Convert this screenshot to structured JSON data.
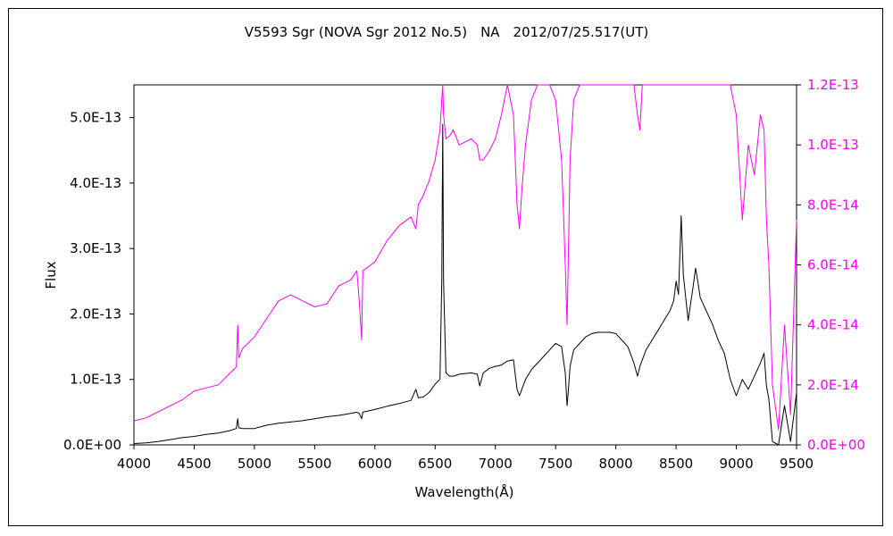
{
  "chart_data": {
    "type": "line",
    "title": "V5593 Sgr (NOVA Sgr 2012 No.5)　NA　2012/07/25.517(UT)",
    "xlabel": "Wavelength(Å)",
    "ylabel": "Flux",
    "xlim": [
      4000,
      9500
    ],
    "ylim_left": [
      0,
      5.5e-13
    ],
    "ylim_right": [
      0,
      1.2e-13
    ],
    "x_ticks": [
      4000,
      4500,
      5000,
      5500,
      6000,
      6500,
      7000,
      7500,
      8000,
      8500,
      9000,
      9500
    ],
    "x_tick_labels": [
      "4000",
      "4500",
      "5000",
      "5500",
      "6000",
      "6500",
      "7000",
      "7500",
      "8000",
      "8500",
      "9000",
      "9500"
    ],
    "y_left_ticks": [
      0,
      1e-13,
      2e-13,
      3e-13,
      4e-13,
      5e-13
    ],
    "y_left_tick_labels": [
      "0.0E+00",
      "1.0E-13",
      "2.0E-13",
      "3.0E-13",
      "4.0E-13",
      "5.0E-13"
    ],
    "y_right_ticks": [
      0,
      2e-14,
      4e-14,
      6e-14,
      8e-14,
      1e-13,
      1.2e-13
    ],
    "y_right_tick_labels": [
      "0.0E+00",
      "2.0E-14",
      "4.0E-14",
      "6.0E-14",
      "8.0E-14",
      "1.0E-13",
      "1.2E-13"
    ],
    "grid": false,
    "colors": {
      "left_axis": "#000000",
      "right_axis": "#ff00ff"
    },
    "series": [
      {
        "axis": "left",
        "color": "#000000",
        "x": [
          4000,
          4100,
          4200,
          4300,
          4400,
          4500,
          4600,
          4700,
          4800,
          4850,
          4861,
          4870,
          4900,
          5000,
          5100,
          5200,
          5300,
          5400,
          5500,
          5600,
          5700,
          5800,
          5850,
          5870,
          5890,
          5900,
          6000,
          6100,
          6200,
          6300,
          6340,
          6360,
          6400,
          6450,
          6500,
          6540,
          6555,
          6563,
          6570,
          6590,
          6620,
          6650,
          6700,
          6800,
          6850,
          6870,
          6900,
          6950,
          7000,
          7050,
          7100,
          7150,
          7180,
          7200,
          7220,
          7250,
          7300,
          7350,
          7400,
          7450,
          7500,
          7550,
          7580,
          7595,
          7605,
          7620,
          7650,
          7700,
          7750,
          7800,
          7850,
          7900,
          7950,
          8000,
          8050,
          8100,
          8150,
          8180,
          8200,
          8220,
          8250,
          8300,
          8350,
          8400,
          8450,
          8480,
          8500,
          8520,
          8542,
          8560,
          8600,
          8640,
          8662,
          8680,
          8700,
          8750,
          8800,
          8850,
          8900,
          8950,
          9000,
          9050,
          9100,
          9150,
          9200,
          9230,
          9250,
          9270,
          9300,
          9350,
          9400,
          9450,
          9500
        ],
        "y": [
          2e-15,
          3e-15,
          5e-15,
          8e-15,
          1.1e-14,
          1.3e-14,
          1.6e-14,
          1.8e-14,
          2.2e-14,
          2.5e-14,
          4e-14,
          2.6e-14,
          2.5e-14,
          2.5e-14,
          3e-14,
          3.3e-14,
          3.5e-14,
          3.7e-14,
          4e-14,
          4.3e-14,
          4.5e-14,
          4.8e-14,
          5e-14,
          4.8e-14,
          4e-14,
          5e-14,
          5.4e-14,
          5.9e-14,
          6.3e-14,
          6.8e-14,
          8.5e-14,
          7.2e-14,
          7.3e-14,
          8e-14,
          9.3e-14,
          1e-13,
          2.5e-13,
          4.9e-13,
          2.5e-13,
          1.1e-13,
          1.05e-13,
          1.05e-13,
          1.08e-13,
          1.1e-13,
          1.08e-13,
          9e-14,
          1.1e-13,
          1.17e-13,
          1.2e-13,
          1.22e-13,
          1.28e-13,
          1.3e-13,
          8.5e-14,
          7.5e-14,
          8.5e-14,
          1e-13,
          1.15e-13,
          1.25e-13,
          1.35e-13,
          1.45e-13,
          1.55e-13,
          1.5e-13,
          1.1e-13,
          6e-14,
          8e-14,
          1.2e-13,
          1.45e-13,
          1.55e-13,
          1.65e-13,
          1.7e-13,
          1.72e-13,
          1.72e-13,
          1.72e-13,
          1.7e-13,
          1.6e-13,
          1.5e-13,
          1.25e-13,
          1.05e-13,
          1.2e-13,
          1.3e-13,
          1.45e-13,
          1.6e-13,
          1.75e-13,
          1.9e-13,
          2.05e-13,
          2.2e-13,
          2.5e-13,
          2.3e-13,
          3.5e-13,
          2.6e-13,
          1.9e-13,
          2.4e-13,
          2.7e-13,
          2.5e-13,
          2.25e-13,
          2.05e-13,
          1.85e-13,
          1.6e-13,
          1.4e-13,
          1e-13,
          7.5e-14,
          1e-13,
          8.5e-14,
          1.05e-13,
          1.25e-13,
          1.4e-13,
          9e-14,
          7e-14,
          5e-15,
          0.0,
          6e-14,
          5e-15,
          8e-14
        ]
      },
      {
        "axis": "right",
        "color": "#ff00ff",
        "x": [
          4000,
          4100,
          4200,
          4300,
          4400,
          4500,
          4600,
          4700,
          4800,
          4850,
          4861,
          4870,
          4900,
          5000,
          5100,
          5200,
          5300,
          5400,
          5500,
          5600,
          5700,
          5800,
          5850,
          5870,
          5890,
          5900,
          6000,
          6100,
          6200,
          6300,
          6340,
          6360,
          6400,
          6450,
          6500,
          6540,
          6555,
          6563,
          6570,
          6590,
          6620,
          6650,
          6700,
          6800,
          6850,
          6870,
          6900,
          6950,
          7000,
          7050,
          7100,
          7150,
          7180,
          7200,
          7220,
          7250,
          7300,
          7350,
          7400,
          7450,
          7500,
          7550,
          7580,
          7595,
          7605,
          7620,
          7650,
          7700,
          7750,
          7800,
          7850,
          7900,
          7950,
          8000,
          8050,
          8100,
          8150,
          8180,
          8200,
          8220,
          8250,
          8300,
          8350,
          8400,
          8450,
          8480,
          8500,
          8520,
          8542,
          8560,
          8600,
          8640,
          8662,
          8680,
          8700,
          8750,
          8800,
          8850,
          8900,
          8950,
          9000,
          9050,
          9100,
          9150,
          9200,
          9230,
          9250,
          9270,
          9300,
          9350,
          9400,
          9450,
          9500
        ],
        "y": [
          8e-15,
          9e-15,
          1.1e-14,
          1.3e-14,
          1.5e-14,
          1.8e-14,
          1.9e-14,
          2e-14,
          2.4e-14,
          2.6e-14,
          4e-14,
          2.9e-14,
          3.2e-14,
          3.6e-14,
          4.2e-14,
          4.8e-14,
          5e-14,
          4.8e-14,
          4.6e-14,
          4.7e-14,
          5.3e-14,
          5.5e-14,
          5.8e-14,
          4.8e-14,
          3.5e-14,
          5.8e-14,
          6.1e-14,
          6.8e-14,
          7.3e-14,
          7.6e-14,
          7.2e-14,
          8e-14,
          8.3e-14,
          8.8e-14,
          9.5e-14,
          1.05e-13,
          1.15e-13,
          1.2e-13,
          1.1e-13,
          1.02e-13,
          1.03e-13,
          1.05e-13,
          1e-13,
          1.02e-13,
          1e-13,
          9.5e-14,
          9.5e-14,
          9.8e-14,
          1.02e-13,
          1.1e-13,
          1.2e-13,
          1.1e-13,
          8e-14,
          7.2e-14,
          8.5e-14,
          1e-13,
          1.15e-13,
          1.2e-13,
          1.2e-13,
          1.2e-13,
          1.15e-13,
          9.5e-14,
          6e-14,
          4e-14,
          6e-14,
          9.5e-14,
          1.15e-13,
          1.2e-13,
          1.2e-13,
          1.2e-13,
          1.2e-13,
          1.2e-13,
          1.2e-13,
          1.2e-13,
          1.2e-13,
          1.2e-13,
          1.2e-13,
          1.1e-13,
          1.05e-13,
          1.2e-13,
          1.2e-13,
          1.2e-13,
          1.2e-13,
          1.2e-13,
          1.2e-13,
          1.2e-13,
          1.2e-13,
          1.2e-13,
          1.2e-13,
          1.2e-13,
          1.2e-13,
          1.2e-13,
          1.2e-13,
          1.2e-13,
          1.2e-13,
          1.2e-13,
          1.2e-13,
          1.2e-13,
          1.2e-13,
          1.2e-13,
          1.1e-13,
          7.5e-14,
          1e-13,
          9e-14,
          1.1e-13,
          1.05e-13,
          7.5e-14,
          6e-14,
          2e-14,
          5e-15,
          4e-14,
          1e-14,
          7.5e-14
        ]
      }
    ]
  }
}
